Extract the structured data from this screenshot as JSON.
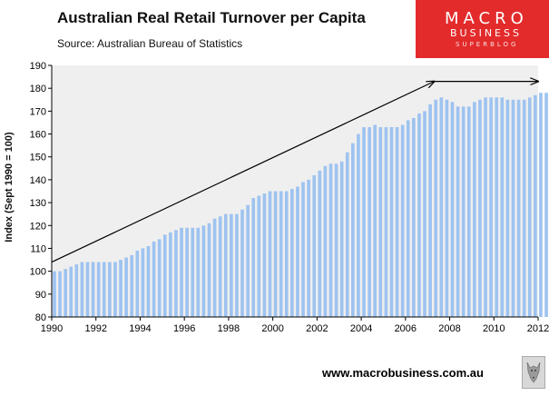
{
  "title": "Australian Real Retail Turnover per Capita",
  "source": "Source: Australian Bureau of Statistics",
  "logo": {
    "line1": "MACRO",
    "line2": "BUSINESS",
    "line3": "SUPERBLOG"
  },
  "footer_url": "www.macrobusiness.com.au",
  "colors": {
    "bar": "#9ec3f0",
    "plot_bg": "#efefef",
    "logo_bg": "#e32b2b"
  },
  "chart_data": {
    "type": "bar",
    "title": "Australian Real Retail Turnover per Capita",
    "ylabel": "Index (Sept 1990  = 100)",
    "xlabel": "",
    "ylim": [
      80,
      190
    ],
    "yticks": [
      80,
      90,
      100,
      110,
      120,
      130,
      140,
      150,
      160,
      170,
      180,
      190
    ],
    "xlim": [
      1990,
      2012
    ],
    "xticks": [
      "1990",
      "1992",
      "1994",
      "1996",
      "1998",
      "2000",
      "2002",
      "2004",
      "2006",
      "2008",
      "2010",
      "2012"
    ],
    "grid": false,
    "period_start": 1990.0,
    "period_step": 0.25,
    "values": [
      100,
      100,
      101,
      102,
      103,
      104,
      104,
      104,
      104,
      104,
      104,
      104,
      105,
      106,
      107,
      109,
      110,
      111,
      113,
      114,
      116,
      117,
      118,
      119,
      119,
      119,
      119,
      120,
      121,
      123,
      124,
      125,
      125,
      125,
      127,
      129,
      132,
      133,
      134,
      135,
      135,
      135,
      135,
      136,
      137,
      139,
      140,
      142,
      144,
      146,
      147,
      147,
      148,
      152,
      156,
      160,
      163,
      163,
      164,
      163,
      163,
      163,
      163,
      164,
      166,
      167,
      169,
      170,
      173,
      175,
      176,
      175,
      174,
      172,
      172,
      172,
      174,
      175,
      176,
      176,
      176,
      176,
      175,
      175,
      175,
      175,
      176,
      177,
      178,
      178,
      177
    ],
    "annotations": [
      {
        "type": "arrow",
        "from": [
          1990.0,
          104
        ],
        "to": [
          2007.3,
          183
        ]
      },
      {
        "type": "arrow",
        "from": [
          2007.3,
          183
        ],
        "to": [
          2012.0,
          183
        ]
      }
    ]
  }
}
